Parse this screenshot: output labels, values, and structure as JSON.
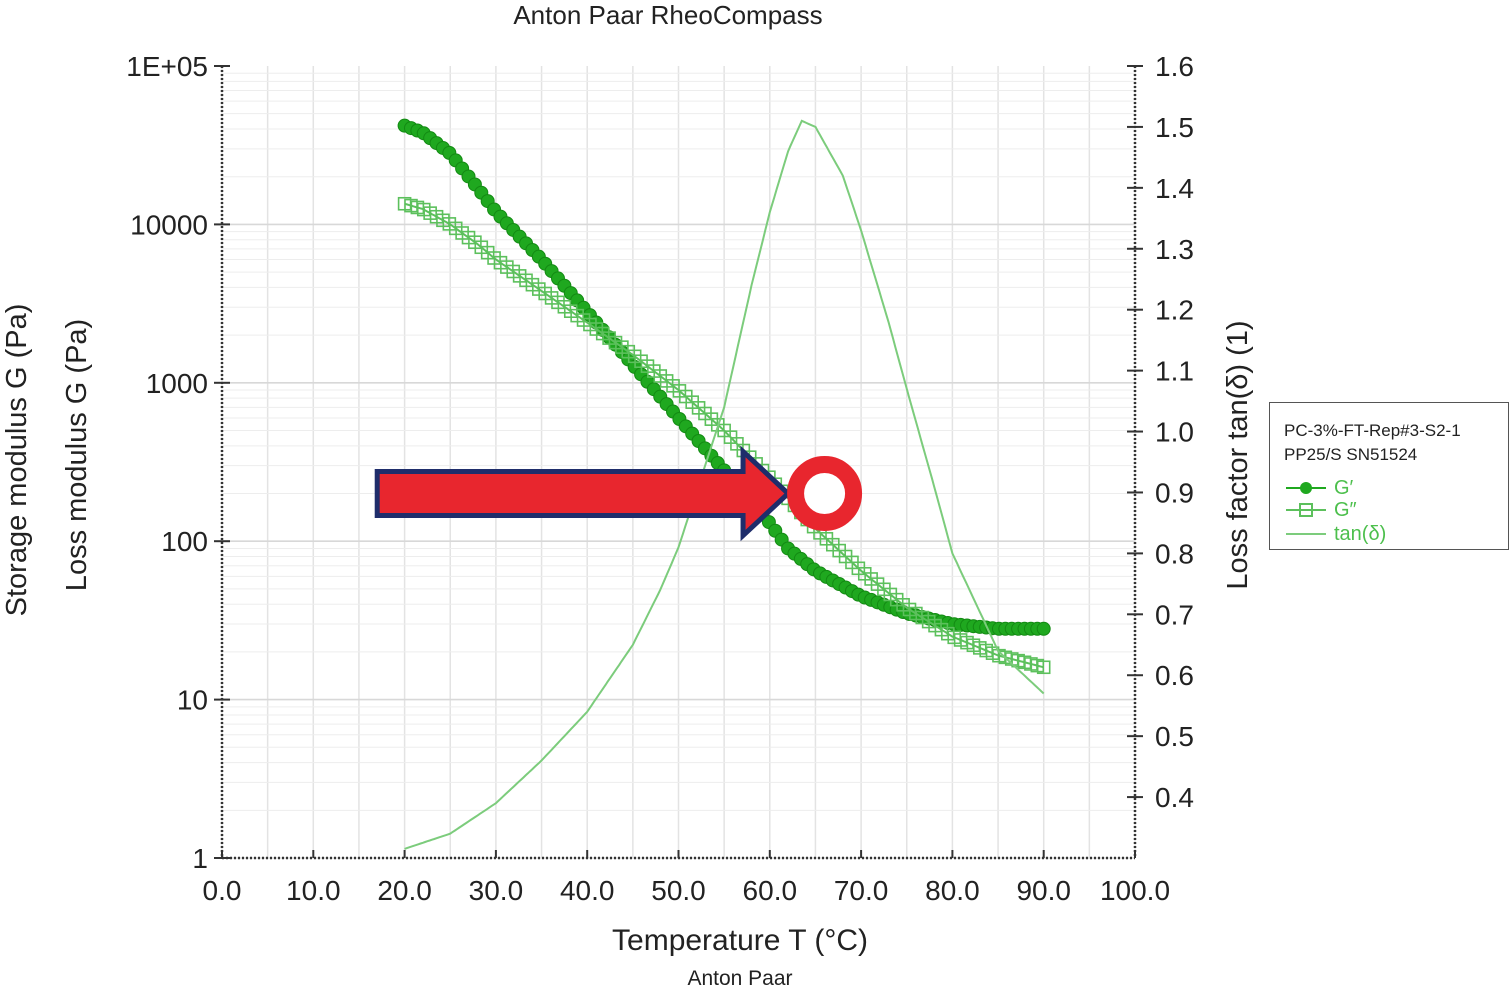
{
  "chart_data": {
    "type": "line",
    "title": "Anton Paar RheoCompass",
    "footer": "Anton Paar",
    "xlabel": "Temperature T (°C)",
    "ylabel_left_1": "Storage modulus G (Pa)",
    "ylabel_left_2": "Loss modulus G (Pa)",
    "ylabel_right": "Loss factor tan(δ) (1)",
    "xlim": [
      0,
      100
    ],
    "ylim_left": [
      1,
      100000
    ],
    "y_left_scale": "log",
    "ylim_right": [
      0.3,
      1.6
    ],
    "x_ticks": [
      "0.0",
      "10.0",
      "20.0",
      "30.0",
      "40.0",
      "50.0",
      "60.0",
      "70.0",
      "80.0",
      "90.0",
      "100.0"
    ],
    "y_left_ticks": [
      {
        "value": 1,
        "label": "1"
      },
      {
        "value": 10,
        "label": "10"
      },
      {
        "value": 100,
        "label": "100"
      },
      {
        "value": 1000,
        "label": "1000"
      },
      {
        "value": 10000,
        "label": "10000"
      },
      {
        "value": 100000,
        "label": "1E+05"
      }
    ],
    "y_right_ticks": [
      {
        "value": 0.4,
        "label": "0.4"
      },
      {
        "value": 0.5,
        "label": "0.5"
      },
      {
        "value": 0.6,
        "label": "0.6"
      },
      {
        "value": 0.7,
        "label": "0.7"
      },
      {
        "value": 0.8,
        "label": "0.8"
      },
      {
        "value": 0.9,
        "label": "0.9"
      },
      {
        "value": 1.0,
        "label": "1.0"
      },
      {
        "value": 1.1,
        "label": "1.1"
      },
      {
        "value": 1.2,
        "label": "1.2"
      },
      {
        "value": 1.3,
        "label": "1.3"
      },
      {
        "value": 1.4,
        "label": "1.4"
      },
      {
        "value": 1.5,
        "label": "1.5"
      },
      {
        "value": 1.6,
        "label": "1.6"
      }
    ],
    "grid": true,
    "legend": {
      "placement": "right",
      "header_1": "PC-3%-FT-Rep#3-S2-1",
      "header_2": "PP25/S SN51524"
    },
    "series": [
      {
        "name": "G′",
        "axis": "left",
        "marker": "filled-circle",
        "color": "#1fa81f",
        "x": [
          20,
          22,
          25,
          28,
          30,
          35,
          40,
          45,
          50,
          55,
          60,
          62,
          65,
          70,
          75,
          80,
          85,
          90
        ],
        "y": [
          42000,
          38000,
          28000,
          17000,
          12000,
          6000,
          2800,
          1300,
          600,
          280,
          130,
          90,
          65,
          45,
          35,
          30,
          28,
          28
        ]
      },
      {
        "name": "G″",
        "axis": "left",
        "marker": "open-square",
        "color": "#5cc05c",
        "x": [
          20,
          22,
          25,
          28,
          30,
          35,
          40,
          45,
          50,
          55,
          60,
          65,
          70,
          75,
          80,
          85,
          90
        ],
        "y": [
          13500,
          12500,
          10000,
          7500,
          6000,
          3800,
          2400,
          1500,
          900,
          500,
          250,
          120,
          65,
          38,
          25,
          19,
          16
        ]
      },
      {
        "name": "tan(δ)",
        "axis": "right",
        "marker": "none",
        "color": "#7ccc7c",
        "x": [
          20,
          25,
          30,
          35,
          40,
          45,
          48,
          50,
          55,
          58,
          60,
          62,
          63.5,
          65,
          68,
          70,
          73,
          75,
          78,
          80,
          85,
          90
        ],
        "y": [
          0.315,
          0.34,
          0.39,
          0.46,
          0.54,
          0.65,
          0.74,
          0.81,
          1.04,
          1.24,
          1.36,
          1.46,
          1.51,
          1.5,
          1.42,
          1.33,
          1.18,
          1.07,
          0.91,
          0.8,
          0.64,
          0.57
        ]
      }
    ],
    "annotations": [
      {
        "type": "arrow",
        "color": "#e8262e",
        "outline": "#1f2d6b",
        "from_x": 17,
        "to_x": 62,
        "y": 200
      },
      {
        "type": "circle",
        "color": "#e8262e",
        "x": 66,
        "y": 200
      }
    ]
  }
}
